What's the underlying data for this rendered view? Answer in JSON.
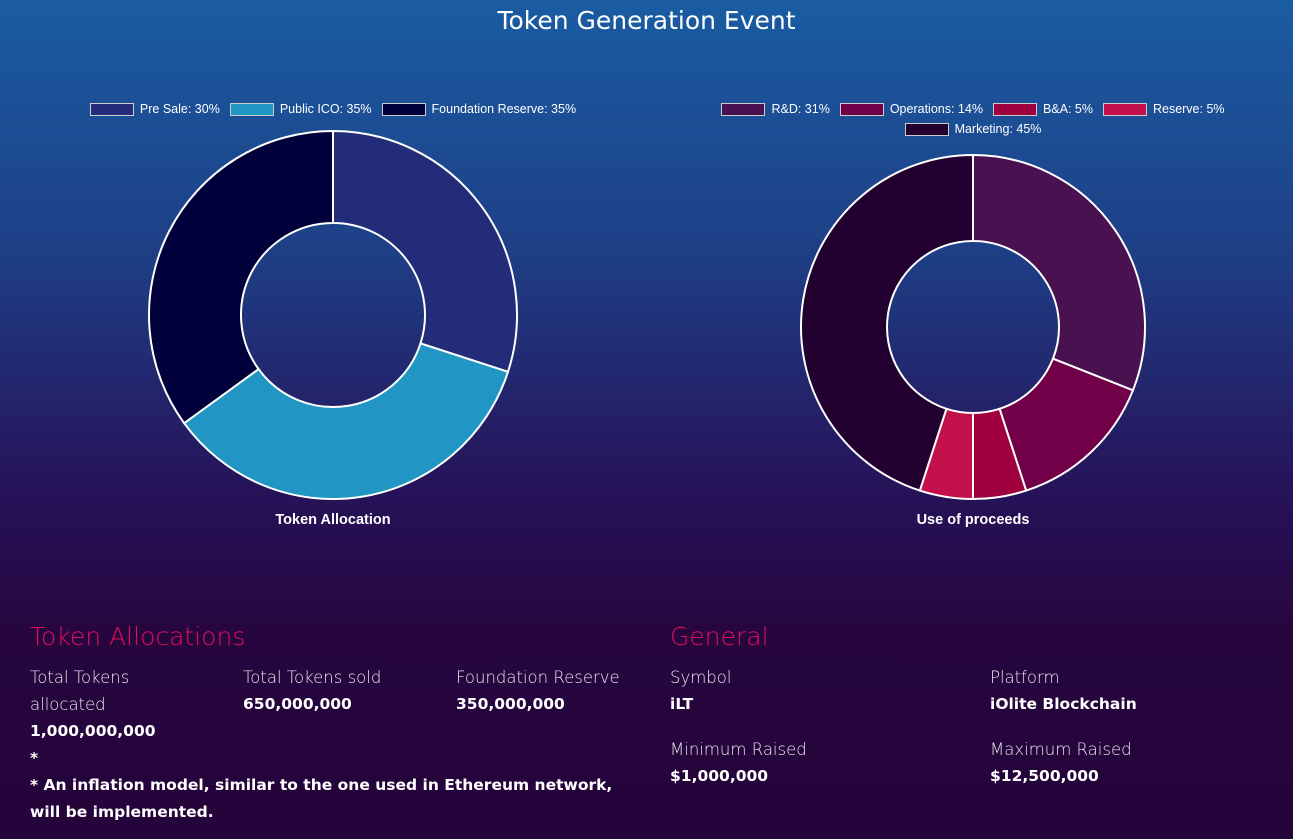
{
  "title": "Token Generation Event",
  "chart_data": [
    {
      "type": "donut",
      "title": "Token Allocation",
      "categories": [
        "Pre Sale: 30%",
        "Public ICO: 35%",
        "Foundation Reserve: 35%"
      ],
      "values": [
        30,
        35,
        35
      ],
      "colors": [
        "#222c78",
        "#2196c4",
        "#02003a"
      ]
    },
    {
      "type": "donut",
      "title": "Use of proceeds",
      "categories": [
        "R&D: 31%",
        "Operations: 14%",
        "B&A: 5%",
        "Reserve: 5%",
        "Marketing: 45%"
      ],
      "values": [
        31,
        14,
        5,
        5,
        45
      ],
      "colors": [
        "#4a1150",
        "#720048",
        "#a0003e",
        "#c4104a",
        "#22002f"
      ]
    }
  ],
  "token_allocations": {
    "heading": "Token Allocations",
    "items": [
      {
        "label": "Total Tokens allocated",
        "value": "1,000,000,000 *"
      },
      {
        "label": "Total Tokens sold",
        "value": "650,000,000"
      },
      {
        "label": "Foundation Reserve",
        "value": "350,000,000"
      }
    ],
    "note": "* An inflation model, similar to the one used in Ethereum network, will be implemented."
  },
  "general": {
    "heading": "General",
    "items": [
      {
        "label": "Symbol",
        "value": "iLT"
      },
      {
        "label": "Platform",
        "value": "iOlite Blockchain"
      },
      {
        "label": "Minimum Raised",
        "value": "$1,000,000"
      },
      {
        "label": "Maximum Raised",
        "value": "$12,500,000"
      }
    ]
  }
}
